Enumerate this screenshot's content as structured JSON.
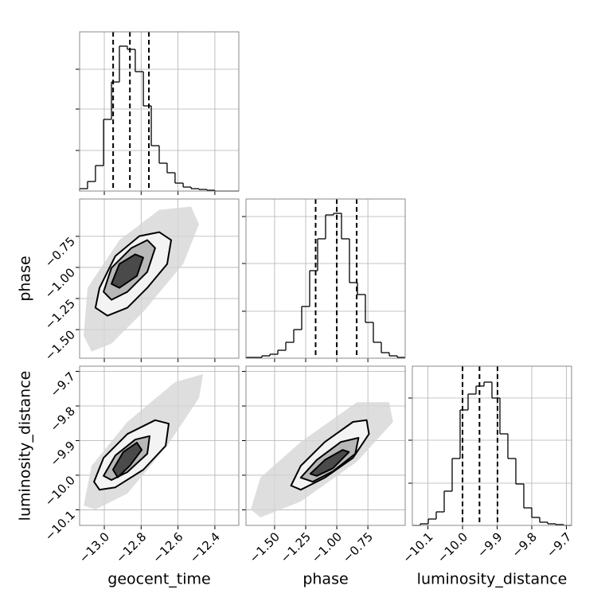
{
  "chart_data": [
    {
      "type": "histogram",
      "bins": [
        -13.134,
        -13.091,
        -13.048,
        -13.004,
        -12.961,
        -12.918,
        -12.875,
        -12.832,
        -12.788,
        -12.745,
        -12.702,
        -12.659,
        -12.616,
        -12.572,
        -12.529,
        -12.486,
        -12.443,
        -12.4,
        -12.356,
        -12.313,
        -12.27
      ],
      "values": [
        3,
        12,
        32,
        90,
        137,
        182,
        178,
        150,
        107,
        57,
        35,
        23,
        10,
        5,
        3,
        2,
        1,
        0,
        0,
        0
      ],
      "quantiles": [
        -12.952,
        -12.861,
        -12.758
      ],
      "xlim": [
        -13.134,
        -12.27
      ],
      "ylim": [
        0,
        200
      ],
      "xticks": [
        -13.0,
        -12.8,
        -12.6,
        -12.4
      ],
      "yticks": [
        51,
        103,
        153
      ],
      "grid": true,
      "color": "#000000"
    },
    {
      "type": "contour",
      "xlim": [
        -13.134,
        -12.27
      ],
      "ylim": [
        -1.73,
        -0.45
      ],
      "xticks": [
        -13.0,
        -12.8,
        -12.6,
        -12.4
      ],
      "yticks": [
        {
          "value": -0.75,
          "label": "−0.75"
        },
        {
          "value": -1.0,
          "label": "−1.00"
        },
        {
          "value": -1.25,
          "label": "−1.25"
        },
        {
          "value": -1.5,
          "label": "−1.50"
        }
      ],
      "ylabel": "phase",
      "grid": true,
      "density_region": {
        "color": "#d6d6d6",
        "x": [
          -13.112,
          -13.091,
          -12.918,
          -12.702,
          -12.529,
          -12.486,
          -12.572,
          -12.788,
          -12.961,
          -13.069
        ],
        "y": [
          -1.548,
          -1.164,
          -0.78,
          -0.537,
          -0.511,
          -0.652,
          -0.972,
          -1.356,
          -1.612,
          -1.676
        ]
      },
      "contours": [
        {
          "color": "#f3f3f3",
          "x": [
            -13.048,
            -13.026,
            -12.94,
            -12.81,
            -12.702,
            -12.637,
            -12.659,
            -12.767,
            -12.875,
            -12.983
          ],
          "y": [
            -1.324,
            -1.164,
            -0.908,
            -0.748,
            -0.716,
            -0.78,
            -0.972,
            -1.164,
            -1.324,
            -1.388
          ]
        },
        {
          "color": "#b8b8b8",
          "x": [
            -13.004,
            -12.961,
            -12.853,
            -12.767,
            -12.724,
            -12.767,
            -12.875,
            -12.961
          ],
          "y": [
            -1.196,
            -1.004,
            -0.844,
            -0.78,
            -0.844,
            -1.036,
            -1.196,
            -1.26
          ]
        },
        {
          "color": "#4a4a4a",
          "x": [
            -12.961,
            -12.918,
            -12.832,
            -12.789,
            -12.823,
            -12.918
          ],
          "y": [
            -1.132,
            -0.972,
            -0.895,
            -0.921,
            -1.068,
            -1.164
          ]
        }
      ]
    },
    {
      "type": "histogram",
      "bins": [
        -1.73,
        -1.666,
        -1.602,
        -1.538,
        -1.474,
        -1.41,
        -1.346,
        -1.282,
        -1.218,
        -1.154,
        -1.09,
        -1.026,
        -0.962,
        -0.898,
        -0.834,
        -0.77,
        -0.706,
        -0.642,
        -0.578,
        -0.514,
        -0.45
      ],
      "values": [
        1,
        1,
        3,
        5,
        10,
        20,
        36,
        65,
        110,
        150,
        180,
        182,
        150,
        95,
        80,
        45,
        20,
        7,
        3,
        1
      ],
      "quantiles": [
        -1.17,
        -1.0,
        -0.84
      ],
      "xlim": [
        -1.73,
        -0.45
      ],
      "ylim": [
        0,
        200
      ],
      "xticks": [
        -1.5,
        -1.25,
        -1.0,
        -0.75
      ],
      "yticks": [
        59,
        119,
        178
      ],
      "grid": true,
      "color": "#000000"
    },
    {
      "type": "contour",
      "xlim": [
        -13.134,
        -12.27
      ],
      "ylim": [
        -10.145,
        -9.685
      ],
      "xticks": [
        {
          "value": -13.0,
          "label": "−13.0"
        },
        {
          "value": -12.8,
          "label": "−12.8"
        },
        {
          "value": -12.6,
          "label": "−12.6"
        },
        {
          "value": -12.4,
          "label": "−12.4"
        }
      ],
      "yticks": [
        {
          "value": -9.7,
          "label": "−9.7"
        },
        {
          "value": -9.8,
          "label": "−9.8"
        },
        {
          "value": -9.9,
          "label": "−9.9"
        },
        {
          "value": -10.0,
          "label": "−10.0"
        },
        {
          "value": -10.1,
          "label": "−10.1"
        }
      ],
      "xlabel": "geocent_time",
      "ylabel": "luminosity_distance",
      "grid": true,
      "density_region": {
        "color": "#d6d6d6",
        "x": [
          -13.112,
          -13.069,
          -12.875,
          -12.616,
          -12.464,
          -12.486,
          -12.659,
          -12.875,
          -13.048
        ],
        "y": [
          -10.088,
          -9.973,
          -9.846,
          -9.731,
          -9.708,
          -9.777,
          -9.915,
          -10.053,
          -10.099
        ]
      },
      "contours": [
        {
          "color": "#f3f3f3",
          "x": [
            -13.056,
            -13.004,
            -12.875,
            -12.724,
            -12.65,
            -12.667,
            -12.788,
            -12.94,
            -13.026
          ],
          "y": [
            -10.019,
            -9.95,
            -9.881,
            -9.841,
            -9.851,
            -9.915,
            -9.984,
            -10.035,
            -10.042
          ]
        },
        {
          "color": "#b8b8b8",
          "x": [
            -13.004,
            -12.94,
            -12.832,
            -12.754,
            -12.767,
            -12.875,
            -12.961
          ],
          "y": [
            -10.002,
            -9.943,
            -9.897,
            -9.887,
            -9.938,
            -9.991,
            -10.014
          ]
        },
        {
          "color": "#4a4a4a",
          "x": [
            -12.953,
            -12.897,
            -12.823,
            -12.797,
            -12.862,
            -12.927
          ],
          "y": [
            -9.984,
            -9.933,
            -9.906,
            -9.927,
            -9.973,
            -10.006
          ]
        }
      ]
    },
    {
      "type": "contour",
      "xlim": [
        -1.73,
        -0.45
      ],
      "ylim": [
        -10.145,
        -9.685
      ],
      "xticks": [
        {
          "value": -1.5,
          "label": "−1.50"
        },
        {
          "value": -1.25,
          "label": "−1.25"
        },
        {
          "value": -1.0,
          "label": "−1.00"
        },
        {
          "value": -0.75,
          "label": "−0.75"
        }
      ],
      "yticks": [
        -9.7,
        -9.8,
        -9.9,
        -10.0,
        -10.1
      ],
      "xlabel": "phase",
      "grid": true,
      "density_region": {
        "color": "#d6d6d6",
        "x": [
          -1.691,
          -1.614,
          -1.29,
          -0.838,
          -0.579,
          -0.547,
          -0.838,
          -1.29,
          -1.614
        ],
        "y": [
          -10.099,
          -10.007,
          -9.904,
          -9.789,
          -9.789,
          -9.846,
          -9.961,
          -10.076,
          -10.122
        ]
      },
      "contours": [
        {
          "color": "#f3f3f3",
          "x": [
            -1.368,
            -1.29,
            -1.096,
            -0.87,
            -0.76,
            -0.741,
            -0.87,
            -1.096,
            -1.29
          ],
          "y": [
            -10.03,
            -9.973,
            -9.904,
            -9.846,
            -9.841,
            -9.881,
            -9.95,
            -10.007,
            -10.042
          ]
        },
        {
          "color": "#b8b8b8",
          "x": [
            -1.29,
            -1.161,
            -0.967,
            -0.825,
            -0.851,
            -1.032,
            -1.193
          ],
          "y": [
            -10.007,
            -9.956,
            -9.904,
            -9.892,
            -9.938,
            -9.989,
            -10.019
          ]
        },
        {
          "color": "#4a4a4a",
          "x": [
            -1.213,
            -1.096,
            -0.954,
            -0.902,
            -1.032,
            -1.161
          ],
          "y": [
            -9.996,
            -9.956,
            -9.927,
            -9.933,
            -9.98,
            -10.002
          ]
        }
      ]
    },
    {
      "type": "histogram",
      "bins": [
        -10.145,
        -10.122,
        -10.099,
        -10.076,
        -10.053,
        -10.03,
        -10.007,
        -9.984,
        -9.961,
        -9.938,
        -9.915,
        -9.892,
        -9.869,
        -9.846,
        -9.823,
        -9.8,
        -9.777,
        -9.754,
        -9.731,
        -9.708,
        -9.685
      ],
      "values": [
        0,
        2,
        8,
        17,
        43,
        84,
        145,
        165,
        175,
        180,
        160,
        115,
        84,
        52,
        22,
        10,
        4,
        2,
        1,
        0
      ],
      "quantiles": [
        -10.0,
        -9.951,
        -9.899
      ],
      "xlim": [
        -10.145,
        -9.685
      ],
      "ylim": [
        0,
        200
      ],
      "xticks": [
        {
          "value": -10.1,
          "label": "−10.1"
        },
        {
          "value": -10.0,
          "label": "−10.0"
        },
        {
          "value": -9.9,
          "label": "−9.9"
        },
        {
          "value": -9.8,
          "label": "−9.8"
        },
        {
          "value": -9.7,
          "label": "−9.7"
        }
      ],
      "yticks": [
        53,
        107,
        160
      ],
      "xlabel": "luminosity_distance",
      "grid": true,
      "color": "#000000"
    }
  ]
}
